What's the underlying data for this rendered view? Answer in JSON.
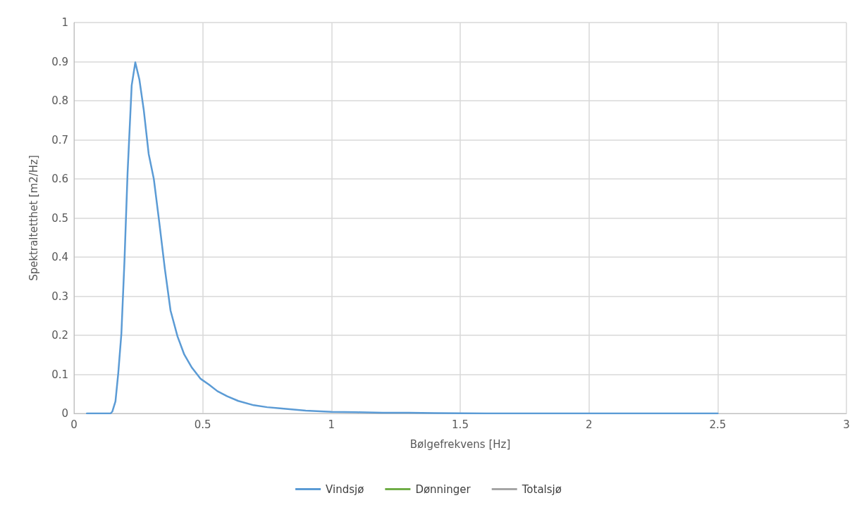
{
  "chart_data": {
    "type": "line",
    "xlabel": "Bølgefrekvens [Hz]",
    "ylabel": "Spektraltetthet [m2/Hz]",
    "x": [
      0.05,
      0.142,
      0.149,
      0.161,
      0.172,
      0.184,
      0.196,
      0.208,
      0.224,
      0.238,
      0.254,
      0.271,
      0.29,
      0.31,
      0.331,
      0.353,
      0.375,
      0.402,
      0.428,
      0.458,
      0.491,
      0.524,
      0.557,
      0.595,
      0.638,
      0.698,
      0.75,
      0.8,
      0.9,
      1.0,
      1.1,
      1.2,
      1.3,
      1.4,
      1.6,
      1.8,
      2.0,
      2.2,
      2.5
    ],
    "series": [
      {
        "name": "Vindsjø",
        "color": "#5b9bd5",
        "values": [
          0,
          0,
          0.005,
          0.031,
          0.104,
          0.204,
          0.39,
          0.614,
          0.839,
          0.898,
          0.854,
          0.776,
          0.664,
          0.6,
          0.49,
          0.369,
          0.263,
          0.197,
          0.151,
          0.117,
          0.089,
          0.074,
          0.057,
          0.044,
          0.032,
          0.021,
          0.016,
          0.013,
          0.007,
          0.004,
          0.003,
          0.002,
          0.002,
          0.001,
          0,
          0,
          0,
          0,
          0
        ]
      },
      {
        "name": "Dønninger",
        "color": "#70ad47",
        "values": [
          null,
          null,
          null,
          null,
          null,
          null,
          null,
          null,
          null,
          null,
          null,
          null,
          null,
          null,
          null,
          null,
          null,
          null,
          null,
          null,
          null,
          null,
          null,
          null,
          null,
          null,
          null,
          null,
          null,
          null,
          null,
          null,
          null,
          null,
          null,
          null,
          null,
          null,
          null
        ]
      },
      {
        "name": "Totalsjø",
        "color": "#a5a5a5",
        "values": [
          null,
          null,
          null,
          null,
          null,
          null,
          null,
          null,
          null,
          null,
          null,
          null,
          null,
          null,
          null,
          null,
          null,
          null,
          null,
          null,
          null,
          null,
          null,
          null,
          null,
          null,
          null,
          null,
          null,
          null,
          null,
          null,
          null,
          null,
          null,
          null,
          null,
          null,
          null
        ]
      }
    ],
    "xlim": [
      0,
      3
    ],
    "xticks": [
      0,
      0.5,
      1,
      1.5,
      2,
      2.5,
      3
    ],
    "ylim": [
      0,
      1
    ],
    "yticks": [
      0,
      0.1,
      0.2,
      0.3,
      0.4,
      0.5,
      0.6,
      0.7,
      0.8,
      0.9,
      1
    ],
    "grid": true,
    "legend": "bottom",
    "marker": "none",
    "line_style": "solid"
  }
}
